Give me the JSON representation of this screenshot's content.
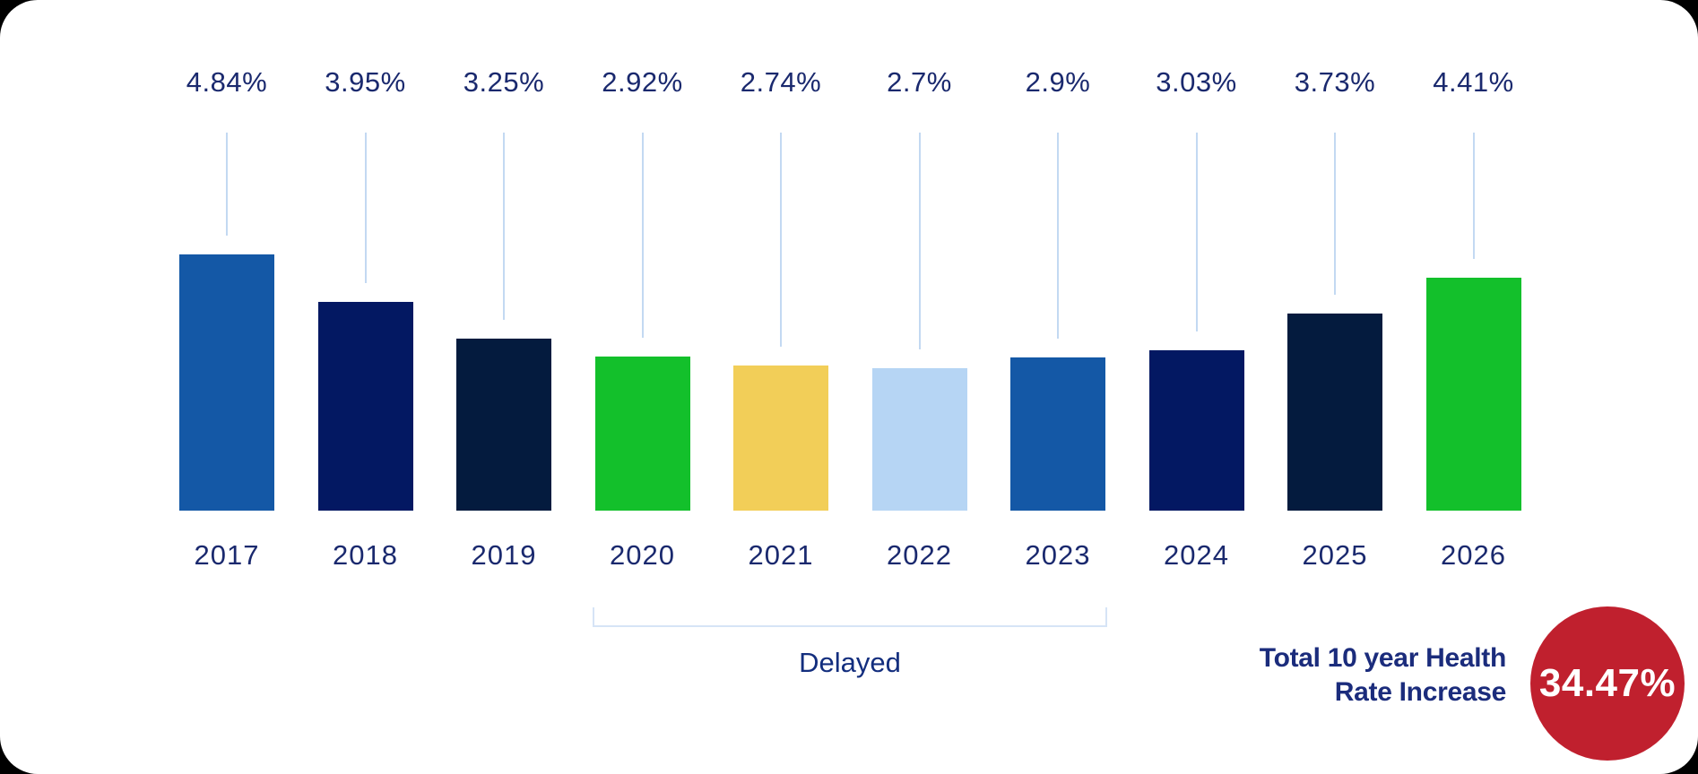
{
  "page": {
    "background_color": "#000000",
    "card_background_color": "#ffffff"
  },
  "chart_data": {
    "type": "bar",
    "title": "",
    "xlabel": "",
    "ylabel": "",
    "categories": [
      "2017",
      "2018",
      "2019",
      "2020",
      "2021",
      "2022",
      "2023",
      "2024",
      "2025",
      "2026"
    ],
    "values": [
      4.84,
      3.95,
      3.25,
      2.92,
      2.74,
      2.7,
      2.9,
      3.03,
      3.73,
      4.41
    ],
    "value_labels": [
      "4.84%",
      "3.95%",
      "3.25%",
      "2.92%",
      "2.74%",
      "2.7%",
      "2.9%",
      "3.03%",
      "3.73%",
      "4.41%"
    ],
    "bar_colors": [
      "#1458A6",
      "#031862",
      "#041B3E",
      "#13C02B",
      "#F2CE58",
      "#B6D5F4",
      "#1458A6",
      "#031862",
      "#041B3E",
      "#13C02B"
    ],
    "ylim": [
      0,
      5
    ],
    "grid": false,
    "legend": null,
    "label_color": "#1A296E",
    "connector_color": "#C3D9F2",
    "annotation": {
      "label": "Delayed",
      "from_category": "2020",
      "to_category": "2023",
      "bracket_color": "#D6E4F6",
      "text_color": "#132E7E"
    },
    "summary": {
      "label_line1": "Total 10 year Health",
      "label_line2": "Rate Increase",
      "value": "34.47%",
      "badge_color": "#C0202E",
      "text_color": "#1B2C7C",
      "value_color": "#ffffff"
    }
  }
}
